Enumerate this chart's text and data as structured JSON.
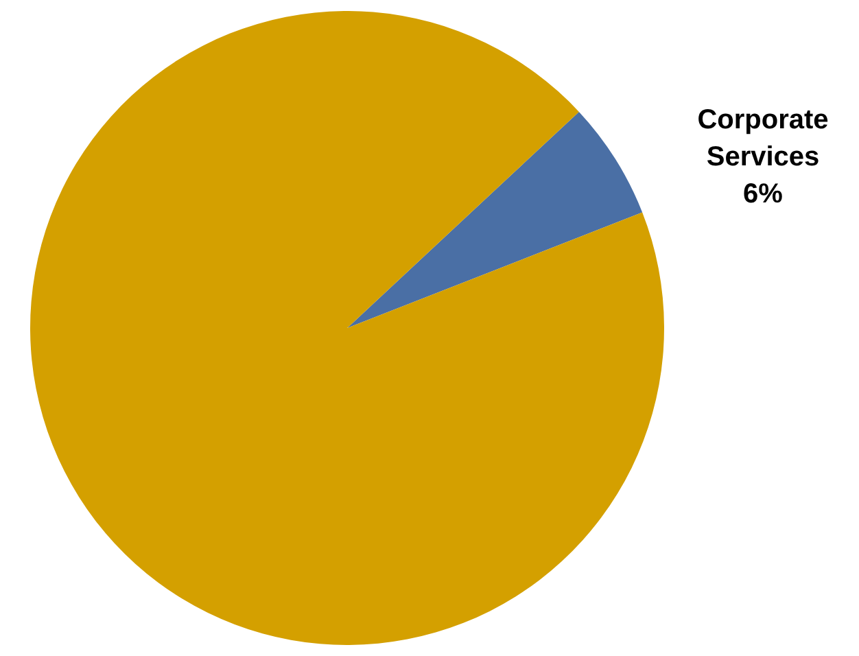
{
  "chart_data": {
    "type": "pie",
    "categories": [
      "Corporate Services",
      null
    ],
    "values": [
      6,
      94
    ],
    "colors": [
      "#4a6fa5",
      "#d4a000"
    ],
    "value_labels": [
      "6%",
      null
    ],
    "legend": false
  }
}
